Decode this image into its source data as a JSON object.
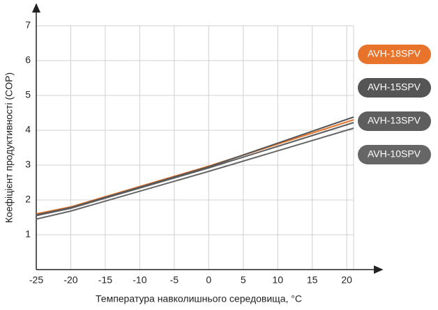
{
  "chart_data": {
    "type": "line",
    "xlabel": "Температура навколишнього середовища, °C",
    "ylabel": "Коефіцієнт продуктивності (COP)",
    "x": [
      -25,
      -20,
      0,
      21
    ],
    "series": [
      {
        "name": "AVH-18SPV",
        "color": "#e8732a",
        "values": [
          1.6,
          1.8,
          2.97,
          4.3
        ]
      },
      {
        "name": "AVH-15SPV",
        "color": "#555555",
        "values": [
          1.57,
          1.78,
          2.95,
          4.38
        ]
      },
      {
        "name": "AVH-13SPV",
        "color": "#5e5e5e",
        "values": [
          1.55,
          1.76,
          2.92,
          4.22
        ]
      },
      {
        "name": "AVH-10SPV",
        "color": "#666666",
        "values": [
          1.45,
          1.68,
          2.82,
          4.06
        ]
      }
    ],
    "xlim": [
      -25,
      21
    ],
    "ylim": [
      0,
      7
    ],
    "xticks": [
      -25,
      -20,
      -15,
      -10,
      -5,
      0,
      5,
      10,
      15,
      20
    ],
    "yticks": [
      1,
      2,
      3,
      4,
      5,
      6,
      7
    ],
    "grid": true
  }
}
